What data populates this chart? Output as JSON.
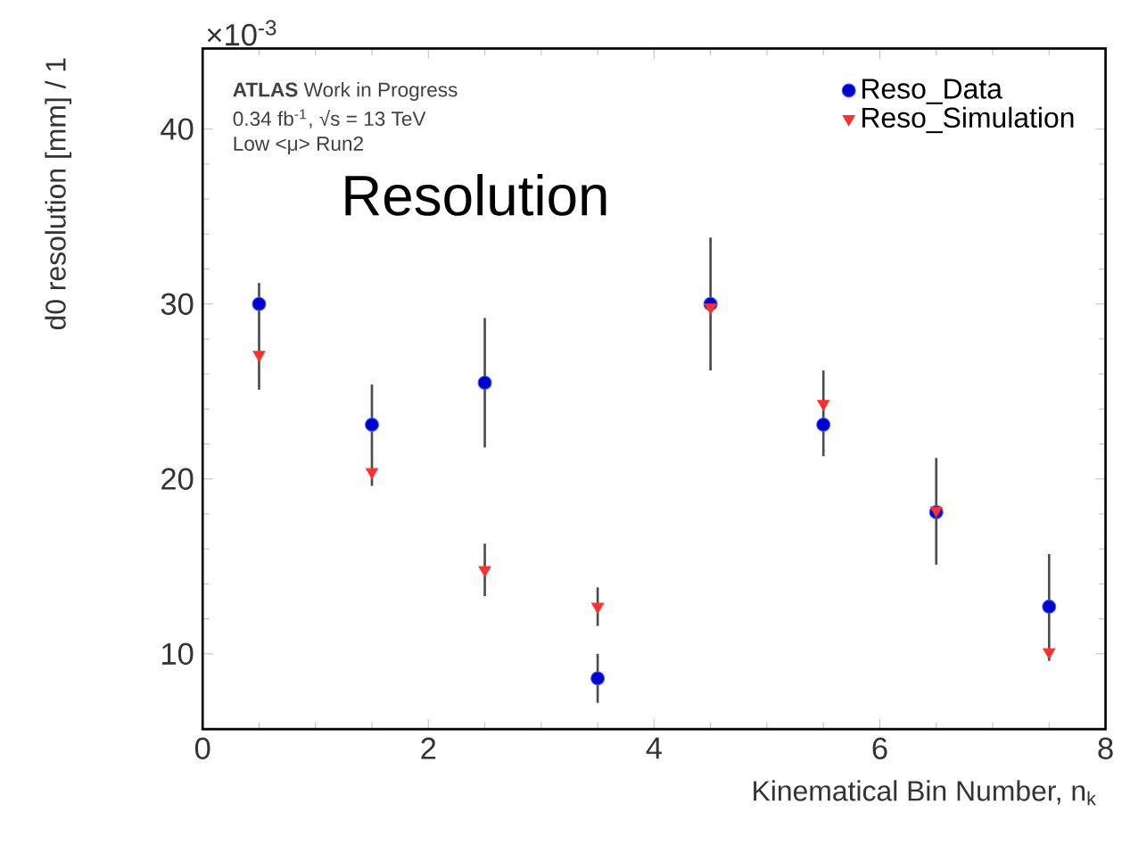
{
  "chart_data": {
    "type": "scatter",
    "xlabel": "Kinematical Bin Number, n$_{k}$",
    "ylabel": "d0 resolution [mm] / 1",
    "annotations": [
      "×10$^{-3}$",
      "**ATLAS** Work in Progress",
      "0.34 fb$^{-1}$, √s = 13 TeV",
      "Low <μ> Run2",
      "Resolution"
    ],
    "x": [
      0.5,
      1.5,
      2.5,
      3.5,
      4.5,
      5.5,
      6.5,
      7.5
    ],
    "series": [
      {
        "name": "Reso_Data",
        "color": "#3f5fff",
        "marker": "circle",
        "values": [
          30.0,
          23.1,
          25.5,
          8.6,
          30.0,
          23.1,
          18.1,
          12.7
        ],
        "errors": [
          [
            25.1,
            31.2
          ],
          [
            19.6,
            25.4
          ],
          3.7,
          1.4,
          [
            26.2,
            33.8
          ],
          [
            21.3,
            26.2
          ],
          [
            15.1,
            21.2
          ],
          [
            9.6,
            15.7
          ]
        ]
      },
      {
        "name": "Reso_Simulation",
        "color": "#ff3030",
        "marker": "triangle",
        "values": [
          27.1,
          20.4,
          14.8,
          12.7,
          29.8,
          24.3,
          18.2,
          10.1
        ],
        "errors": [
          null,
          null,
          1.5,
          1.1,
          null,
          null,
          null,
          null
        ]
      }
    ],
    "xlim": [
      0,
      8
    ],
    "ylim": [
      5.7,
      44.6
    ],
    "xticks": [
      0,
      2,
      4,
      6,
      8
    ],
    "yticks": [
      10,
      20,
      30,
      40
    ],
    "legend": "top right"
  }
}
